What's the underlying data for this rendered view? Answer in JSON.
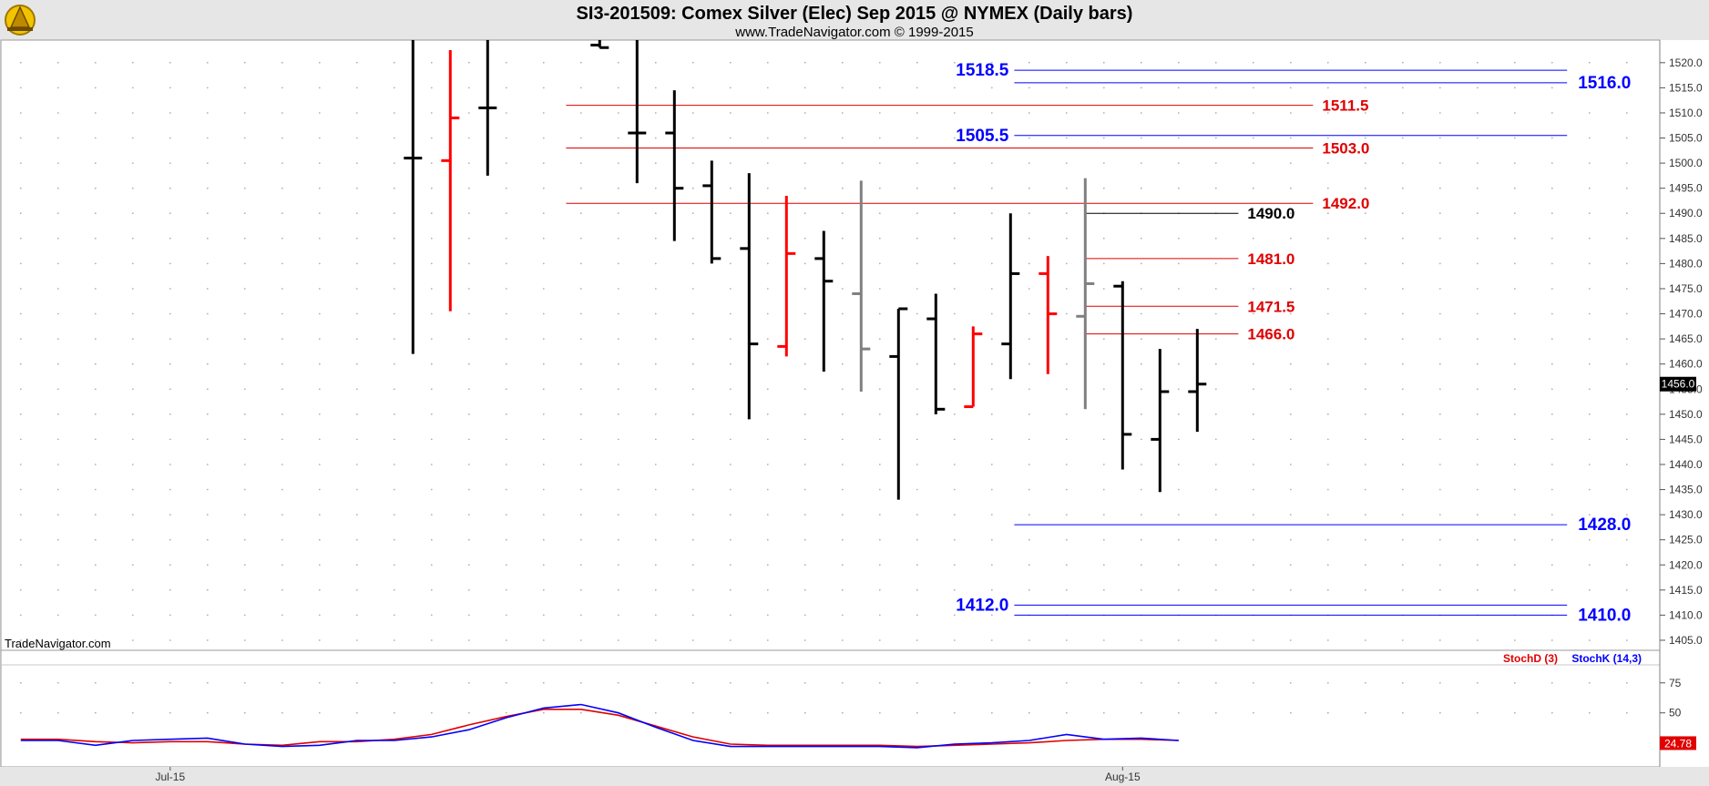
{
  "title": "SI3-201509:  Comex Silver (Elec) Sep 2015 @ NYMEX  (Daily bars)",
  "subtitle": "www.TradeNavigator.com © 1999-2015",
  "watermark": "TradeNavigator.com",
  "colors": {
    "up": "#000000",
    "down": "#ff0000",
    "neutral": "#808080",
    "blue": "#0000ff",
    "red": "#e00000"
  },
  "chart_data": [
    {
      "type": "bar",
      "subtype": "ohlc",
      "yticks": [
        1405.0,
        1410.0,
        1415.0,
        1420.0,
        1425.0,
        1430.0,
        1435.0,
        1440.0,
        1445.0,
        1450.0,
        1455.0,
        1460.0,
        1465.0,
        1470.0,
        1475.0,
        1480.0,
        1485.0,
        1490.0,
        1495.0,
        1500.0,
        1505.0,
        1510.0,
        1515.0,
        1520.0
      ],
      "ylim": [
        1403.0,
        1524.5
      ],
      "xticks": [
        {
          "label": "Jul-15",
          "bar": 4.0
        },
        {
          "label": "Aug-15",
          "bar": 29.5
        }
      ],
      "last_price": "1456.0",
      "bars": [
        {
          "o": 1501.0,
          "h": 1525.0,
          "l": 1462.0,
          "c": 1501.0,
          "color": "up"
        },
        {
          "o": 1500.5,
          "h": 1522.5,
          "l": 1470.5,
          "c": 1509.0,
          "color": "down"
        },
        {
          "o": 1511.0,
          "h": 1525.0,
          "l": 1497.5,
          "c": 1511.0,
          "color": "up"
        },
        {
          "o": 1523.5,
          "h": 1524.5,
          "l": 1523.0,
          "c": 1523.0,
          "color": "up"
        },
        {
          "o": 1506.0,
          "h": 1525.0,
          "l": 1496.0,
          "c": 1506.0,
          "color": "up"
        },
        {
          "o": 1506.0,
          "h": 1514.5,
          "l": 1484.5,
          "c": 1495.0,
          "color": "up"
        },
        {
          "o": 1495.5,
          "h": 1500.5,
          "l": 1480.0,
          "c": 1481.0,
          "color": "up"
        },
        {
          "o": 1483.0,
          "h": 1498.0,
          "l": 1449.0,
          "c": 1464.0,
          "color": "up"
        },
        {
          "o": 1463.5,
          "h": 1493.5,
          "l": 1461.5,
          "c": 1482.0,
          "color": "down"
        },
        {
          "o": 1481.0,
          "h": 1486.5,
          "l": 1458.5,
          "c": 1476.5,
          "color": "up"
        },
        {
          "o": 1474.0,
          "h": 1496.5,
          "l": 1454.5,
          "c": 1463.0,
          "color": "neutral"
        },
        {
          "o": 1461.5,
          "h": 1471.0,
          "l": 1433.0,
          "c": 1471.0,
          "color": "up"
        },
        {
          "o": 1469.0,
          "h": 1474.0,
          "l": 1450.0,
          "c": 1451.0,
          "color": "up"
        },
        {
          "o": 1451.5,
          "h": 1467.5,
          "l": 1451.5,
          "c": 1466.0,
          "color": "down"
        },
        {
          "o": 1464.0,
          "h": 1490.0,
          "l": 1457.0,
          "c": 1478.0,
          "color": "up"
        },
        {
          "o": 1478.0,
          "h": 1481.5,
          "l": 1458.0,
          "c": 1470.0,
          "color": "down"
        },
        {
          "o": 1469.5,
          "h": 1497.0,
          "l": 1451.0,
          "c": 1476.0,
          "color": "neutral"
        },
        {
          "o": 1475.5,
          "h": 1476.5,
          "l": 1439.0,
          "c": 1446.0,
          "color": "up"
        },
        {
          "o": 1445.0,
          "h": 1463.0,
          "l": 1434.5,
          "c": 1454.5,
          "color": "up"
        },
        {
          "o": 1454.5,
          "h": 1467.0,
          "l": 1446.5,
          "c": 1456.0,
          "color": "up"
        }
      ],
      "bar_slots": [
        10.5,
        11.5,
        12.5,
        15.5,
        16.5,
        17.5,
        18.5,
        19.5,
        20.5,
        21.5,
        22.5,
        23.5,
        24.5,
        25.5,
        26.5,
        27.5,
        28.5,
        29.5,
        30.5,
        31.5
      ],
      "levels": [
        {
          "value": 1518.5,
          "label": "1518.5",
          "color": "blue",
          "from": 26.6,
          "to": 41.4,
          "label_side": "left"
        },
        {
          "value": 1516.0,
          "label": "1516.0",
          "color": "blue",
          "from": 26.6,
          "to": 41.4,
          "label_side": "right"
        },
        {
          "value": 1511.5,
          "label": "1511.5",
          "color": "red",
          "from": 14.6,
          "to": 34.6,
          "label_side": "right"
        },
        {
          "value": 1505.5,
          "label": "1505.5",
          "color": "blue",
          "from": 26.6,
          "to": 41.4,
          "label_side": "left"
        },
        {
          "value": 1503.0,
          "label": "1503.0",
          "color": "red",
          "from": 14.6,
          "to": 34.6,
          "label_side": "right"
        },
        {
          "value": 1492.0,
          "label": "1492.0",
          "color": "red",
          "from": 14.6,
          "to": 34.6,
          "label_side": "right"
        },
        {
          "value": 1490.0,
          "label": "1490.0",
          "color": "black",
          "from": 28.5,
          "to": 32.6,
          "label_side": "right"
        },
        {
          "value": 1481.0,
          "label": "1481.0",
          "color": "red",
          "from": 28.5,
          "to": 32.6,
          "label_side": "right"
        },
        {
          "value": 1471.5,
          "label": "1471.5",
          "color": "red",
          "from": 28.5,
          "to": 32.6,
          "label_side": "right"
        },
        {
          "value": 1466.0,
          "label": "1466.0",
          "color": "red",
          "from": 28.5,
          "to": 32.6,
          "label_side": "right"
        },
        {
          "value": 1428.0,
          "label": "1428.0",
          "color": "blue",
          "from": 26.6,
          "to": 41.4,
          "label_side": "right"
        },
        {
          "value": 1412.0,
          "label": "1412.0",
          "color": "blue",
          "from": 26.6,
          "to": 41.4,
          "label_side": "left"
        },
        {
          "value": 1410.0,
          "label": "1410.0",
          "color": "blue",
          "from": 26.6,
          "to": 41.4,
          "label_side": "right"
        }
      ]
    },
    {
      "type": "line",
      "subtype": "stochastic",
      "yticks": [
        50,
        75
      ],
      "ylim": [
        5,
        90
      ],
      "last_value": "24.78",
      "series": [
        {
          "name": "StochD (3)",
          "color": "red",
          "x": [
            0,
            1,
            2,
            3,
            4,
            5,
            6,
            7,
            8,
            9,
            10,
            11,
            12,
            13,
            14,
            15,
            16,
            17,
            18,
            19,
            20,
            21,
            22,
            23,
            24,
            25,
            26,
            27,
            28,
            29,
            30,
            31
          ],
          "values": [
            28,
            28,
            26,
            25,
            26,
            26,
            24,
            23,
            26,
            26,
            28,
            32,
            40,
            47,
            53,
            53,
            48,
            39,
            30,
            24,
            23,
            23,
            23,
            23,
            22,
            23,
            24,
            25,
            27,
            28,
            28,
            27
          ]
        },
        {
          "name": "StochK (14,3)",
          "color": "blue",
          "x": [
            0,
            1,
            2,
            3,
            4,
            5,
            6,
            7,
            8,
            9,
            10,
            11,
            12,
            13,
            14,
            15,
            16,
            17,
            18,
            19,
            20,
            21,
            22,
            23,
            24,
            25,
            26,
            27,
            28,
            29,
            30,
            31
          ],
          "values": [
            27,
            27,
            23,
            27,
            28,
            29,
            24,
            22,
            23,
            27,
            27,
            30,
            36,
            46,
            54,
            57,
            50,
            38,
            27,
            22,
            22,
            22,
            22,
            22,
            21,
            24,
            25,
            27,
            32,
            28,
            29,
            27
          ]
        }
      ]
    }
  ]
}
